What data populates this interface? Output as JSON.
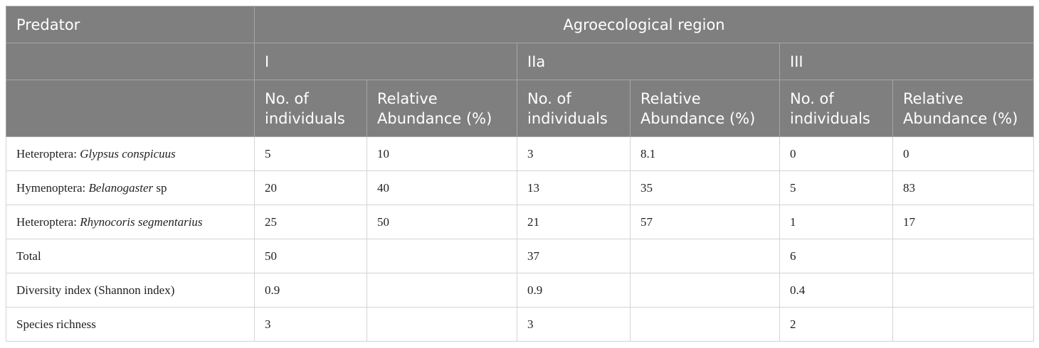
{
  "header": {
    "predator": "Predator",
    "region": "Agroecological region",
    "regions": [
      "I",
      "IIa",
      "III"
    ],
    "columns": [
      "No. of individuals",
      "Relative Abundance (%)",
      "No. of individuals",
      "Relative Abundance (%)",
      "No. of individuals",
      "Relative Abundance (%)"
    ]
  },
  "table": {
    "rows": [
      {
        "order": "Heteroptera:",
        "genus": "Glypsus conspicuus",
        "cells": [
          5,
          10,
          3,
          8.1,
          0,
          0
        ]
      },
      {
        "order": "Hymenoptera:",
        "genus": "Belanogaster",
        "suffix": "sp",
        "cells": [
          20,
          40,
          13,
          35,
          5,
          83
        ]
      },
      {
        "order": "Heteroptera:",
        "genus": "Rhynocoris segmentarius",
        "cells": [
          25,
          50,
          21,
          57,
          1,
          17
        ]
      },
      {
        "label": "Total",
        "counts": [
          50,
          37,
          6
        ]
      },
      {
        "label": "Diversity index (Shannon index)",
        "counts": [
          0.9,
          0.9,
          0.4
        ]
      },
      {
        "label": "Species richness",
        "counts": [
          3,
          3,
          2
        ]
      }
    ]
  }
}
